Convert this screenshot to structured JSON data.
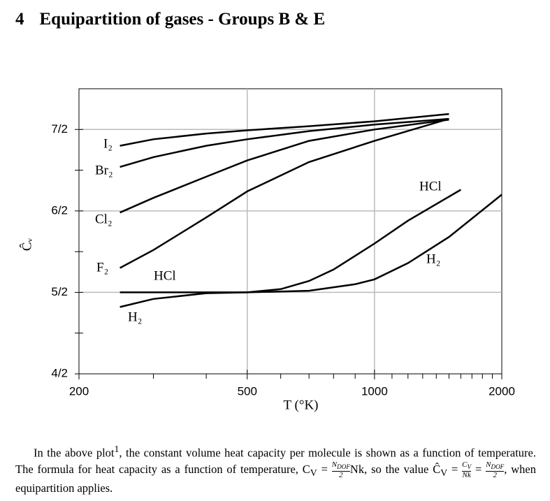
{
  "header": {
    "number": "4",
    "title": "Equipartition of gases - Groups B & E"
  },
  "chart_data": {
    "type": "line",
    "xlabel": "T (°K)",
    "ylabel": "Ĉᵥ",
    "xscale": "log",
    "grid": true,
    "color": "#000000",
    "xlim": [
      200,
      2000
    ],
    "xticks": [
      200,
      500,
      1000,
      2000
    ],
    "xminorticks": [
      300,
      400,
      600,
      700,
      800,
      900,
      1100,
      1200,
      1300,
      1400,
      1500,
      1600,
      1700,
      1800,
      1900
    ],
    "ylim": [
      2,
      3.75
    ],
    "yticks": [
      {
        "value": 2,
        "label": "4/2"
      },
      {
        "value": 2.5,
        "label": "5/2"
      },
      {
        "value": 3,
        "label": "6/2"
      },
      {
        "value": 3.5,
        "label": "7/2"
      }
    ],
    "yminorticks": [
      2.25,
      2.75,
      3.25
    ],
    "series": [
      {
        "name": "I₂",
        "x": [
          250,
          300,
          400,
          500,
          700,
          1000,
          1500
        ],
        "values": [
          3.4,
          3.44,
          3.475,
          3.495,
          3.52,
          3.55,
          3.595
        ]
      },
      {
        "name": "Br₂",
        "x": [
          250,
          300,
          400,
          500,
          700,
          1000,
          1500
        ],
        "values": [
          3.27,
          3.33,
          3.4,
          3.44,
          3.49,
          3.53,
          3.565
        ]
      },
      {
        "name": "Cl₂",
        "x": [
          250,
          300,
          400,
          500,
          700,
          1000,
          1500
        ],
        "values": [
          2.99,
          3.08,
          3.21,
          3.31,
          3.43,
          3.5,
          3.56
        ]
      },
      {
        "name": "F₂",
        "x": [
          250,
          300,
          400,
          500,
          700,
          1000,
          1500
        ],
        "values": [
          2.65,
          2.76,
          2.96,
          3.12,
          3.3,
          3.43,
          3.565
        ]
      },
      {
        "name": "HCl",
        "x": [
          250,
          400,
          500,
          600,
          700,
          800,
          1000,
          1200,
          1600
        ],
        "values": [
          2.5,
          2.5,
          2.5,
          2.52,
          2.57,
          2.64,
          2.8,
          2.94,
          3.13
        ]
      },
      {
        "name": "H₂",
        "x": [
          250,
          300,
          400,
          500,
          700,
          900,
          1000,
          1200,
          1500,
          2000
        ],
        "values": [
          2.41,
          2.46,
          2.495,
          2.5,
          2.51,
          2.55,
          2.58,
          2.68,
          2.84,
          3.1
        ]
      }
    ]
  },
  "paragraph": [
    "In the above plot",
    {
      "sup": "1"
    },
    ", the constant volume heat capacity per molecule is shown as a function of temperature. The formula for heat capacity as a function of temperature, ",
    "C",
    {
      "sub": "V"
    },
    " = ",
    {
      "num": [
        "N",
        {
          "sub": "DOF"
        }
      ],
      "den": [
        "2"
      ]
    },
    "Nk",
    ", so the value ",
    "Ĉ",
    {
      "sub": "V"
    },
    " = ",
    {
      "num": [
        "C",
        {
          "sub": "V"
        }
      ],
      "den": [
        "Nk"
      ]
    },
    " = ",
    {
      "num": [
        "N",
        {
          "sub": "DOF"
        }
      ],
      "den": [
        "2"
      ]
    },
    ", when equipartition applies."
  ]
}
